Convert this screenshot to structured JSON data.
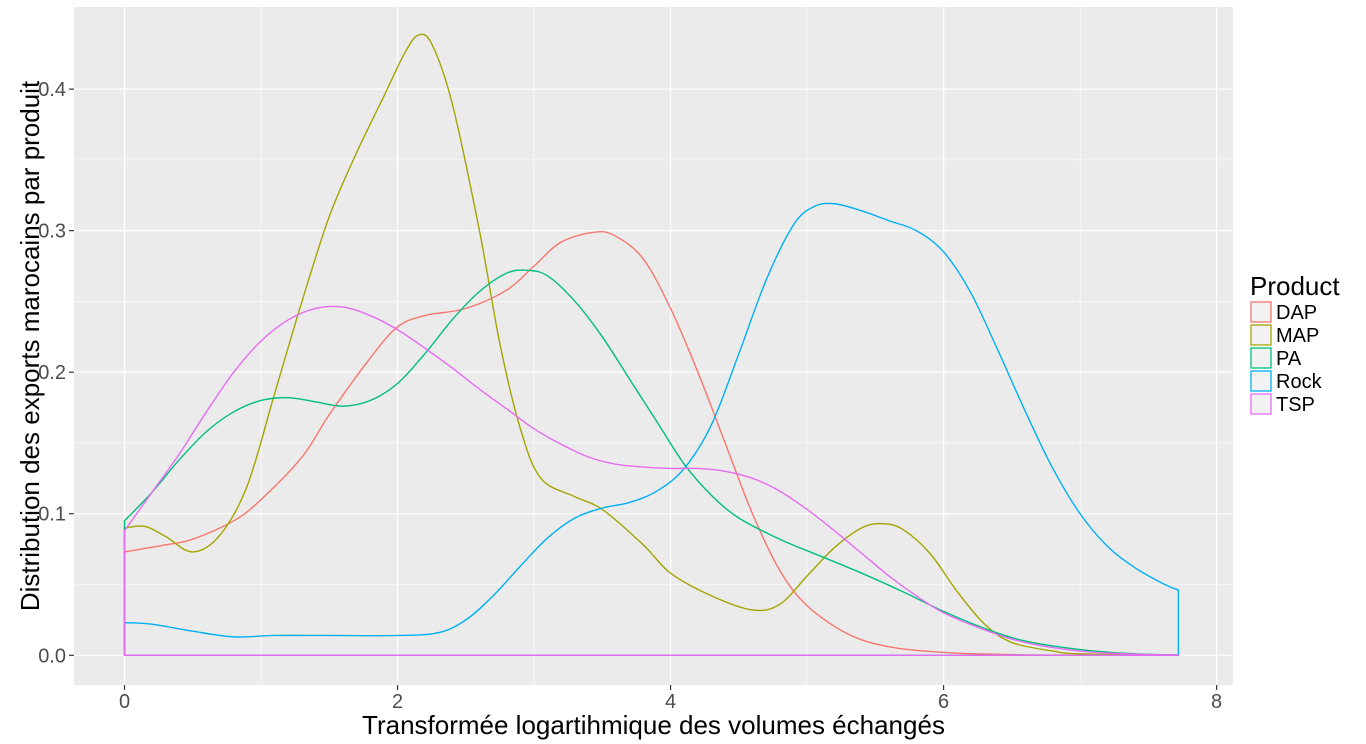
{
  "chart_data": {
    "type": "line",
    "subtype": "density",
    "title": "",
    "xlabel": "Transformée logartihmique des volumes échangés",
    "ylabel": "Distribution des exports marocains par produit",
    "xlim": [
      -0.37,
      8.12
    ],
    "ylim": [
      -0.021,
      0.458
    ],
    "x_ticks": [
      0,
      2,
      4,
      6,
      8
    ],
    "x_tick_labels": [
      "0",
      "2",
      "4",
      "6",
      "8"
    ],
    "y_ticks": [
      0.0,
      0.1,
      0.2,
      0.3,
      0.4
    ],
    "y_tick_labels": [
      "0.0",
      "0.1",
      "0.2",
      "0.3",
      "0.4"
    ],
    "grid": true,
    "legend": {
      "title": "Product",
      "position": "right"
    },
    "x_range": [
      0,
      7.72
    ],
    "series": [
      {
        "name": "DAP",
        "color": "#F8766D",
        "points": [
          [
            0,
            0.073
          ],
          [
            0.3,
            0.078
          ],
          [
            0.5,
            0.082
          ],
          [
            0.8,
            0.095
          ],
          [
            1.0,
            0.11
          ],
          [
            1.3,
            0.14
          ],
          [
            1.5,
            0.17
          ],
          [
            1.8,
            0.21
          ],
          [
            2.0,
            0.232
          ],
          [
            2.2,
            0.24
          ],
          [
            2.5,
            0.245
          ],
          [
            2.8,
            0.258
          ],
          [
            3.0,
            0.275
          ],
          [
            3.2,
            0.292
          ],
          [
            3.45,
            0.299
          ],
          [
            3.6,
            0.296
          ],
          [
            3.8,
            0.28
          ],
          [
            4.0,
            0.245
          ],
          [
            4.2,
            0.2
          ],
          [
            4.4,
            0.15
          ],
          [
            4.6,
            0.1
          ],
          [
            4.8,
            0.06
          ],
          [
            5.0,
            0.035
          ],
          [
            5.3,
            0.015
          ],
          [
            5.6,
            0.006
          ],
          [
            6.0,
            0.002
          ],
          [
            6.5,
            0.0005
          ],
          [
            7.0,
            0.0001
          ],
          [
            7.72,
            0
          ]
        ]
      },
      {
        "name": "MAP",
        "color": "#A3A500",
        "points": [
          [
            0,
            0.09
          ],
          [
            0.15,
            0.091
          ],
          [
            0.3,
            0.084
          ],
          [
            0.5,
            0.073
          ],
          [
            0.7,
            0.085
          ],
          [
            0.9,
            0.12
          ],
          [
            1.1,
            0.185
          ],
          [
            1.3,
            0.25
          ],
          [
            1.5,
            0.31
          ],
          [
            1.7,
            0.355
          ],
          [
            1.9,
            0.395
          ],
          [
            2.05,
            0.425
          ],
          [
            2.15,
            0.438
          ],
          [
            2.25,
            0.432
          ],
          [
            2.4,
            0.39
          ],
          [
            2.6,
            0.3
          ],
          [
            2.75,
            0.22
          ],
          [
            2.9,
            0.16
          ],
          [
            3.05,
            0.125
          ],
          [
            3.3,
            0.112
          ],
          [
            3.5,
            0.103
          ],
          [
            3.8,
            0.078
          ],
          [
            4.0,
            0.058
          ],
          [
            4.3,
            0.042
          ],
          [
            4.6,
            0.032
          ],
          [
            4.8,
            0.036
          ],
          [
            5.0,
            0.056
          ],
          [
            5.2,
            0.076
          ],
          [
            5.4,
            0.09
          ],
          [
            5.55,
            0.093
          ],
          [
            5.7,
            0.089
          ],
          [
            5.9,
            0.072
          ],
          [
            6.1,
            0.045
          ],
          [
            6.3,
            0.022
          ],
          [
            6.5,
            0.009
          ],
          [
            6.8,
            0.003
          ],
          [
            7.0,
            0.001
          ],
          [
            7.72,
            0
          ]
        ]
      },
      {
        "name": "PA",
        "color": "#00BF7D",
        "points": [
          [
            0,
            0.095
          ],
          [
            0.2,
            0.115
          ],
          [
            0.4,
            0.138
          ],
          [
            0.6,
            0.158
          ],
          [
            0.8,
            0.172
          ],
          [
            1.0,
            0.18
          ],
          [
            1.2,
            0.182
          ],
          [
            1.4,
            0.179
          ],
          [
            1.6,
            0.176
          ],
          [
            1.8,
            0.18
          ],
          [
            2.0,
            0.192
          ],
          [
            2.2,
            0.213
          ],
          [
            2.4,
            0.237
          ],
          [
            2.6,
            0.257
          ],
          [
            2.8,
            0.27
          ],
          [
            2.95,
            0.272
          ],
          [
            3.1,
            0.268
          ],
          [
            3.3,
            0.25
          ],
          [
            3.5,
            0.225
          ],
          [
            3.7,
            0.195
          ],
          [
            3.9,
            0.165
          ],
          [
            4.1,
            0.135
          ],
          [
            4.3,
            0.113
          ],
          [
            4.5,
            0.097
          ],
          [
            4.8,
            0.082
          ],
          [
            5.1,
            0.07
          ],
          [
            5.4,
            0.058
          ],
          [
            5.7,
            0.045
          ],
          [
            6.0,
            0.031
          ],
          [
            6.3,
            0.019
          ],
          [
            6.6,
            0.01
          ],
          [
            7.0,
            0.004
          ],
          [
            7.4,
            0.001
          ],
          [
            7.72,
            0.0003
          ]
        ]
      },
      {
        "name": "Rock",
        "color": "#00B0F6",
        "points": [
          [
            0,
            0.023
          ],
          [
            0.2,
            0.022
          ],
          [
            0.5,
            0.017
          ],
          [
            0.8,
            0.013
          ],
          [
            1.1,
            0.014
          ],
          [
            1.5,
            0.014
          ],
          [
            2.0,
            0.014
          ],
          [
            2.3,
            0.016
          ],
          [
            2.5,
            0.025
          ],
          [
            2.7,
            0.042
          ],
          [
            2.9,
            0.063
          ],
          [
            3.1,
            0.083
          ],
          [
            3.3,
            0.097
          ],
          [
            3.5,
            0.104
          ],
          [
            3.7,
            0.108
          ],
          [
            3.9,
            0.116
          ],
          [
            4.1,
            0.132
          ],
          [
            4.3,
            0.163
          ],
          [
            4.5,
            0.213
          ],
          [
            4.7,
            0.265
          ],
          [
            4.9,
            0.304
          ],
          [
            5.05,
            0.317
          ],
          [
            5.2,
            0.319
          ],
          [
            5.4,
            0.314
          ],
          [
            5.6,
            0.307
          ],
          [
            5.8,
            0.3
          ],
          [
            6.0,
            0.285
          ],
          [
            6.2,
            0.256
          ],
          [
            6.4,
            0.215
          ],
          [
            6.6,
            0.172
          ],
          [
            6.8,
            0.132
          ],
          [
            7.0,
            0.1
          ],
          [
            7.2,
            0.077
          ],
          [
            7.4,
            0.062
          ],
          [
            7.6,
            0.051
          ],
          [
            7.72,
            0.046
          ]
        ]
      },
      {
        "name": "TSP",
        "color": "#E76BF3",
        "points": [
          [
            0,
            0.088
          ],
          [
            0.2,
            0.115
          ],
          [
            0.4,
            0.142
          ],
          [
            0.6,
            0.172
          ],
          [
            0.8,
            0.2
          ],
          [
            1.0,
            0.222
          ],
          [
            1.2,
            0.237
          ],
          [
            1.4,
            0.245
          ],
          [
            1.6,
            0.246
          ],
          [
            1.8,
            0.24
          ],
          [
            2.0,
            0.23
          ],
          [
            2.2,
            0.217
          ],
          [
            2.4,
            0.203
          ],
          [
            2.6,
            0.188
          ],
          [
            2.8,
            0.174
          ],
          [
            3.0,
            0.16
          ],
          [
            3.2,
            0.149
          ],
          [
            3.4,
            0.14
          ],
          [
            3.6,
            0.135
          ],
          [
            3.8,
            0.133
          ],
          [
            4.0,
            0.132
          ],
          [
            4.2,
            0.132
          ],
          [
            4.4,
            0.13
          ],
          [
            4.6,
            0.125
          ],
          [
            4.8,
            0.116
          ],
          [
            5.0,
            0.103
          ],
          [
            5.2,
            0.088
          ],
          [
            5.4,
            0.072
          ],
          [
            5.6,
            0.056
          ],
          [
            5.8,
            0.042
          ],
          [
            6.0,
            0.03
          ],
          [
            6.3,
            0.018
          ],
          [
            6.6,
            0.009
          ],
          [
            7.0,
            0.003
          ],
          [
            7.4,
            0.0008
          ],
          [
            7.72,
            0.0002
          ]
        ]
      }
    ]
  }
}
